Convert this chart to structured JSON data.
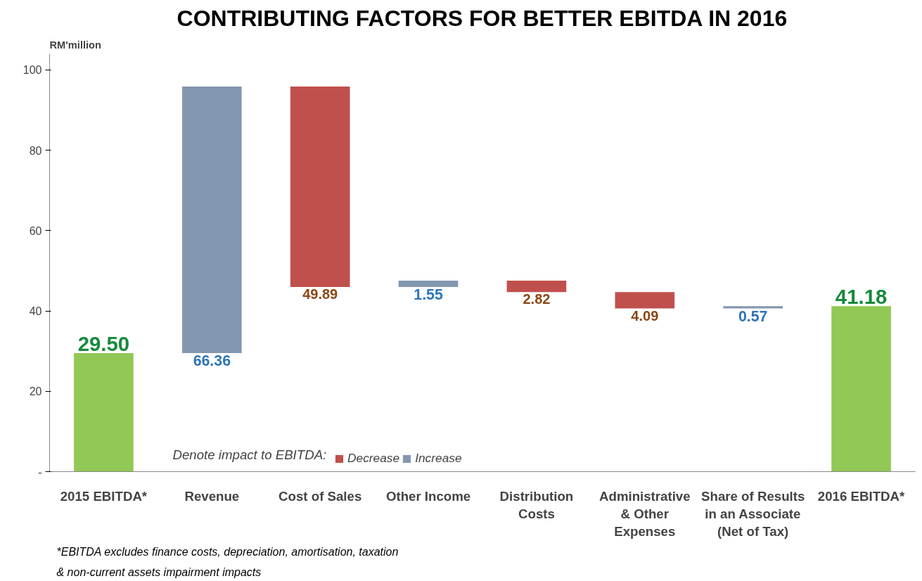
{
  "chart_data": {
    "type": "bar",
    "title": "CONTRIBUTING FACTORS FOR BETTER EBITDA IN 2016",
    "ylabel": "RM'million",
    "categories": [
      "2015 EBITDA*",
      "Revenue",
      "Cost of Sales",
      "Other Income",
      "Distribution\nCosts",
      "Administrative\n& Other\nExpenses",
      "Share of Results\nin an Associate\n(Net of Tax)",
      "2016 EBITDA*"
    ],
    "series": [
      {
        "color": "#92c856",
        "values": [
          29.5,
          null,
          null,
          null,
          null,
          null,
          null,
          41.18
        ],
        "base": [
          0,
          null,
          null,
          null,
          null,
          null,
          null,
          0
        ],
        "value_labels": [
          "29.50",
          null,
          null,
          null,
          null,
          null,
          null,
          "41.18"
        ]
      },
      {
        "name": "Decrease",
        "color": "#c0504d",
        "values": [
          null,
          null,
          -49.89,
          null,
          -2.82,
          -4.09,
          null,
          null
        ],
        "base": [
          null,
          null,
          95.86,
          null,
          47.52,
          44.7,
          null,
          null
        ],
        "value_labels": [
          null,
          null,
          "49.89",
          null,
          "2.82",
          "4.09",
          null,
          null
        ]
      },
      {
        "name": "Increase",
        "color": "#8497b0",
        "values": [
          null,
          66.36,
          null,
          1.55,
          null,
          null,
          0.57,
          null
        ],
        "base": [
          null,
          29.5,
          null,
          45.97,
          null,
          null,
          40.61,
          null
        ],
        "value_labels": [
          null,
          "66.36",
          null,
          "1.55",
          null,
          null,
          "0.57",
          null
        ]
      }
    ],
    "legend_title": "Denote impact to EBITDA:",
    "legend": "bottom",
    "ylim": [
      0,
      104
    ],
    "yticks": [
      {
        "value": 0,
        "label": "-"
      },
      20,
      40,
      60,
      80,
      100
    ],
    "grid": false,
    "annotations": [
      "*EBITDA excludes finance costs, depreciation, amortisation, taxation",
      "& non-current assets impairment impacts"
    ]
  }
}
